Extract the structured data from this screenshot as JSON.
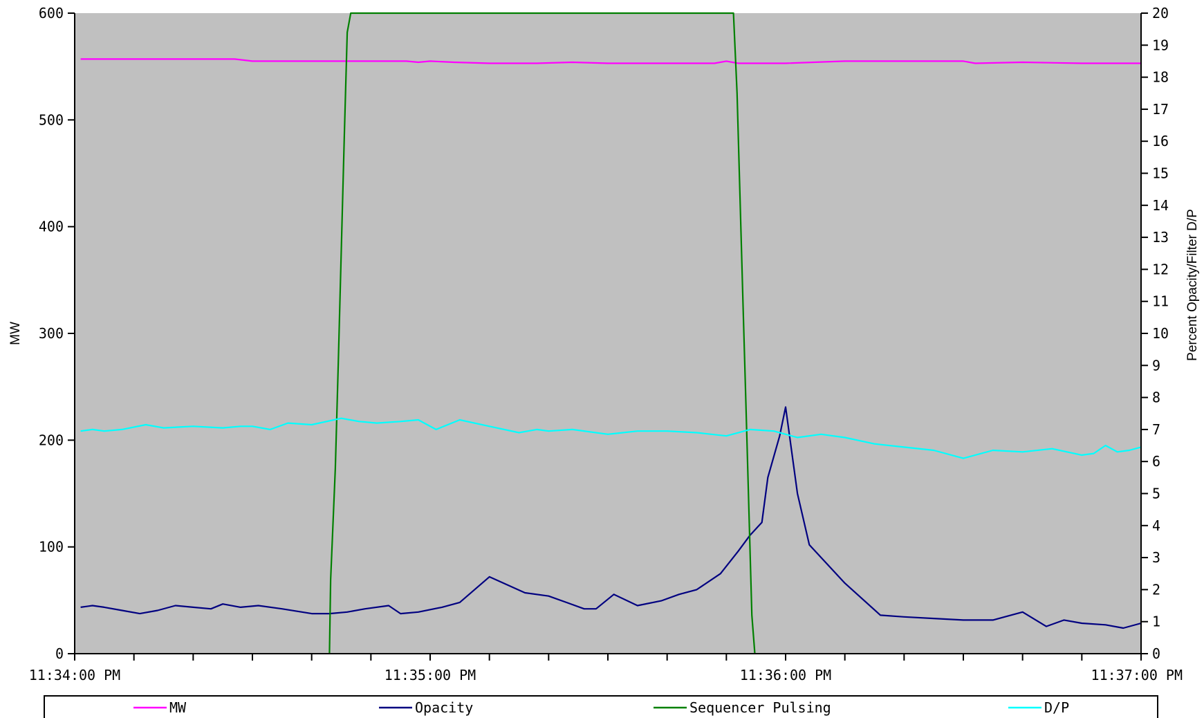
{
  "chart_data": {
    "type": "line",
    "title": "",
    "xlabel": "",
    "ylabel_left": "MW",
    "ylabel_right": "Percent Opacity/Filter D/P",
    "ylim_left": [
      0,
      600
    ],
    "ylim_right": [
      0,
      20
    ],
    "xlim_sec": [
      0,
      180
    ],
    "left_ticks": [
      0,
      100,
      200,
      300,
      400,
      500,
      600
    ],
    "left_tick_labels": [
      "0",
      "100",
      "200",
      "300",
      "400",
      "500",
      "600"
    ],
    "right_ticks": [
      0,
      1,
      2,
      3,
      4,
      5,
      6,
      7,
      8,
      9,
      10,
      11,
      12,
      13,
      14,
      15,
      16,
      17,
      18,
      19,
      20
    ],
    "right_tick_labels": [
      "0",
      "1",
      "2",
      "3",
      "4",
      "5",
      "6",
      "7",
      "8",
      "9",
      "10",
      "11",
      "12",
      "13",
      "14",
      "15",
      "16",
      "17",
      "18",
      "19",
      "20"
    ],
    "x_minor_ticks_sec": [
      0,
      10,
      20,
      30,
      40,
      50,
      60,
      70,
      80,
      90,
      100,
      110,
      120,
      130,
      140,
      150,
      160,
      170,
      180
    ],
    "x_tick_labels": [
      {
        "t": 0,
        "label": "11:34:00 PM"
      },
      {
        "t": 60,
        "label": "11:35:00 PM"
      },
      {
        "t": 120,
        "label": "11:36:00 PM"
      },
      {
        "t": 180,
        "label": "11:37:00 PM"
      }
    ],
    "grid": false,
    "legend_position": "bottom",
    "plot_background": "#c0c0c0",
    "series": [
      {
        "name": "MW",
        "axis": "left",
        "color": "#ff00ff",
        "x": [
          1,
          10,
          20,
          27,
          30,
          40,
          50,
          56,
          58,
          60,
          64,
          70,
          78,
          84,
          90,
          100,
          108,
          110,
          112,
          114,
          120,
          130,
          140,
          148,
          150,
          152,
          160,
          170,
          180
        ],
        "y": [
          557,
          557,
          557,
          557,
          555,
          555,
          555,
          555,
          554,
          555,
          554,
          553,
          553,
          554,
          553,
          553,
          553,
          555,
          553,
          553,
          553,
          555,
          555,
          555,
          555,
          553,
          554,
          553,
          553
        ]
      },
      {
        "name": "Opacity",
        "axis": "right",
        "color": "#000080",
        "x": [
          1,
          3,
          5,
          8,
          11,
          14,
          17,
          20,
          23,
          25,
          28,
          31,
          35,
          40,
          43,
          46,
          49,
          53,
          55,
          58,
          62,
          65,
          70,
          76,
          80,
          83,
          86,
          88,
          91,
          95,
          99,
          102,
          105,
          109,
          112,
          114,
          116,
          117,
          119,
          120,
          122,
          124,
          130,
          136,
          140,
          145,
          150,
          155,
          160,
          164,
          167,
          170,
          174,
          177,
          180
        ],
        "y": [
          1.45,
          1.5,
          1.45,
          1.35,
          1.25,
          1.35,
          1.5,
          1.45,
          1.4,
          1.55,
          1.45,
          1.5,
          1.4,
          1.25,
          1.25,
          1.3,
          1.4,
          1.5,
          1.25,
          1.3,
          1.45,
          1.6,
          2.4,
          1.9,
          1.8,
          1.6,
          1.4,
          1.4,
          1.85,
          1.5,
          1.65,
          1.85,
          2.0,
          2.5,
          3.2,
          3.7,
          4.1,
          5.5,
          6.8,
          7.7,
          5.0,
          3.4,
          2.2,
          1.2,
          1.15,
          1.1,
          1.05,
          1.05,
          1.3,
          0.85,
          1.05,
          0.95,
          0.9,
          0.8,
          0.95
        ]
      },
      {
        "name": "Sequencer Pulsing",
        "axis": "right",
        "color": "#008000",
        "x": [
          43,
          43.2,
          44,
          44.5,
          45,
          45.5,
          46,
          46.6,
          111.2,
          111.8,
          112.3,
          112.8,
          113.3,
          113.8,
          114.3,
          114.8
        ],
        "y": [
          0,
          2.3,
          5.8,
          9.1,
          12.6,
          16.1,
          19.4,
          20,
          20,
          17.5,
          14.3,
          11,
          7.8,
          4.5,
          1.2,
          0
        ]
      },
      {
        "name": "D/P",
        "axis": "right",
        "color": "#00ffff",
        "x": [
          1,
          3,
          5,
          8,
          12,
          15,
          20,
          25,
          28,
          30,
          33,
          36,
          40,
          45,
          48,
          51,
          55,
          58,
          61,
          65,
          70,
          75,
          78,
          80,
          84,
          90,
          95,
          100,
          105,
          110,
          114,
          118,
          122,
          126,
          130,
          135,
          140,
          145,
          150,
          155,
          160,
          165,
          170,
          172,
          174,
          176,
          178,
          180
        ],
        "y": [
          6.95,
          7.0,
          6.95,
          7.0,
          7.15,
          7.05,
          7.1,
          7.05,
          7.1,
          7.1,
          7.0,
          7.2,
          7.15,
          7.35,
          7.25,
          7.2,
          7.25,
          7.3,
          7.0,
          7.3,
          7.1,
          6.9,
          7.0,
          6.95,
          7.0,
          6.85,
          6.95,
          6.95,
          6.9,
          6.8,
          7.0,
          6.95,
          6.75,
          6.85,
          6.75,
          6.55,
          6.45,
          6.35,
          6.1,
          6.35,
          6.3,
          6.4,
          6.2,
          6.25,
          6.5,
          6.3,
          6.35,
          6.45
        ]
      }
    ]
  }
}
